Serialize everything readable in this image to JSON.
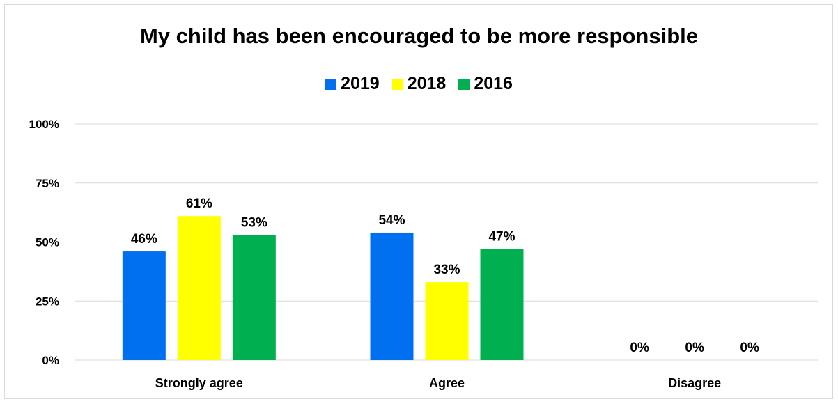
{
  "chart_data": {
    "type": "bar",
    "title": "My child has been encouraged to be more responsible",
    "categories": [
      "Strongly agree",
      "Agree",
      "Disagree"
    ],
    "series": [
      {
        "name": "2019",
        "color": "#0070f0",
        "values": [
          46,
          54,
          0
        ],
        "labels": [
          "46%",
          "54%",
          "0%"
        ]
      },
      {
        "name": "2018",
        "color": "#ffff00",
        "values": [
          61,
          33,
          0
        ],
        "labels": [
          "61%",
          "33%",
          "0%"
        ]
      },
      {
        "name": "2016",
        "color": "#00b050",
        "values": [
          53,
          47,
          0
        ],
        "labels": [
          "53%",
          "47%",
          "0%"
        ]
      }
    ],
    "yticks": [
      "0%",
      "25%",
      "50%",
      "75%",
      "100%"
    ],
    "ytick_values": [
      0,
      25,
      50,
      75,
      100
    ],
    "ylim": [
      0,
      100
    ],
    "grid": true,
    "legend_position": "top"
  }
}
